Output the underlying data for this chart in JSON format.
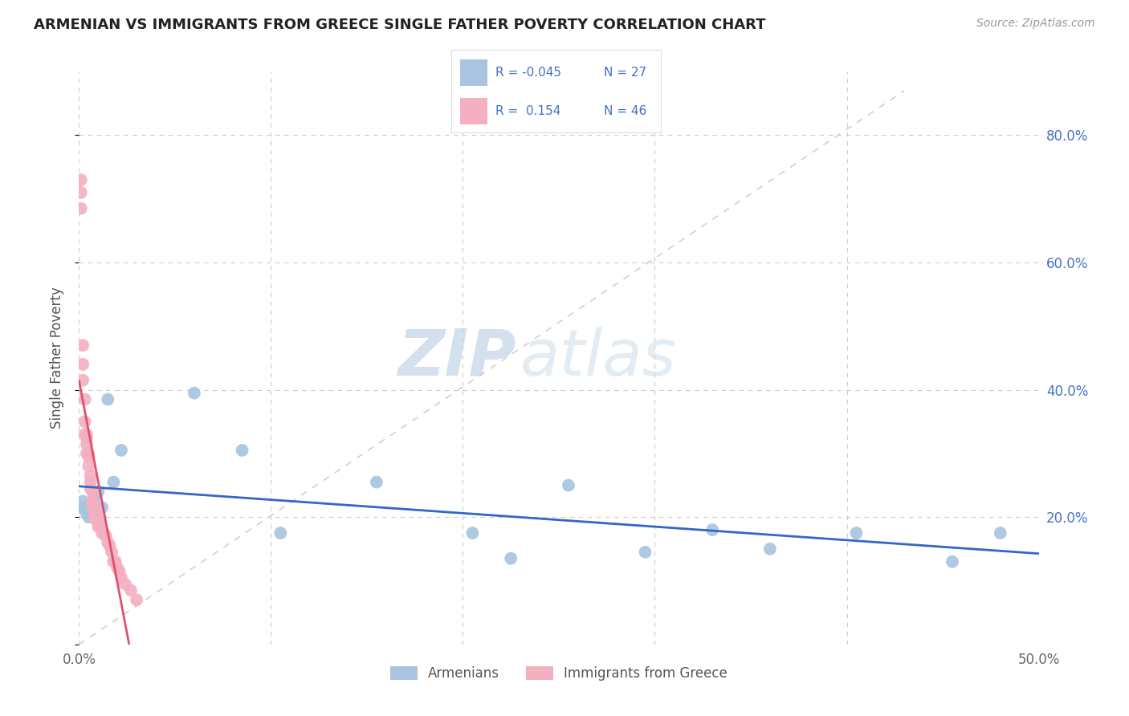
{
  "title": "ARMENIAN VS IMMIGRANTS FROM GREECE SINGLE FATHER POVERTY CORRELATION CHART",
  "source": "Source: ZipAtlas.com",
  "ylabel": "Single Father Poverty",
  "watermark_zip": "ZIP",
  "watermark_atlas": "atlas",
  "armenians": {
    "R": -0.045,
    "N": 27,
    "color": "#a8c4e0",
    "line_color": "#3366cc",
    "x": [
      0.001,
      0.002,
      0.003,
      0.004,
      0.005,
      0.006,
      0.007,
      0.008,
      0.009,
      0.01,
      0.012,
      0.015,
      0.018,
      0.022,
      0.06,
      0.085,
      0.105,
      0.155,
      0.205,
      0.225,
      0.255,
      0.295,
      0.33,
      0.36,
      0.405,
      0.455,
      0.48
    ],
    "y": [
      0.215,
      0.225,
      0.215,
      0.205,
      0.2,
      0.215,
      0.21,
      0.23,
      0.2,
      0.24,
      0.215,
      0.385,
      0.255,
      0.305,
      0.395,
      0.305,
      0.175,
      0.255,
      0.175,
      0.135,
      0.25,
      0.145,
      0.18,
      0.15,
      0.175,
      0.13,
      0.175
    ]
  },
  "greece": {
    "R": 0.154,
    "N": 46,
    "color": "#f4b0c0",
    "line_color": "#e05070",
    "x": [
      0.001,
      0.001,
      0.001,
      0.002,
      0.002,
      0.002,
      0.003,
      0.003,
      0.003,
      0.004,
      0.004,
      0.004,
      0.004,
      0.005,
      0.005,
      0.005,
      0.006,
      0.006,
      0.006,
      0.007,
      0.007,
      0.007,
      0.008,
      0.008,
      0.008,
      0.009,
      0.009,
      0.009,
      0.01,
      0.01,
      0.011,
      0.011,
      0.012,
      0.013,
      0.014,
      0.015,
      0.016,
      0.017,
      0.018,
      0.019,
      0.02,
      0.021,
      0.022,
      0.024,
      0.027,
      0.03
    ],
    "y": [
      0.73,
      0.71,
      0.685,
      0.47,
      0.44,
      0.415,
      0.385,
      0.35,
      0.33,
      0.33,
      0.325,
      0.315,
      0.3,
      0.3,
      0.295,
      0.28,
      0.265,
      0.255,
      0.245,
      0.24,
      0.225,
      0.22,
      0.215,
      0.21,
      0.2,
      0.205,
      0.2,
      0.195,
      0.195,
      0.185,
      0.195,
      0.185,
      0.175,
      0.175,
      0.17,
      0.16,
      0.155,
      0.145,
      0.13,
      0.13,
      0.12,
      0.115,
      0.105,
      0.095,
      0.085,
      0.07
    ]
  },
  "xlim": [
    0,
    0.5
  ],
  "ylim": [
    0,
    0.9
  ],
  "xticks": [
    0,
    0.1,
    0.2,
    0.3,
    0.4,
    0.5
  ],
  "xtick_labels": [
    "0.0%",
    "",
    "",
    "",
    "",
    "50.0%"
  ],
  "yticks": [
    0.0,
    0.2,
    0.4,
    0.6,
    0.8
  ],
  "ytick_labels_right": [
    "",
    "20.0%",
    "40.0%",
    "60.0%",
    "80.0%"
  ],
  "background_color": "#ffffff",
  "grid_color": "#cccccc",
  "diagonal_color": "#d0d0d0"
}
